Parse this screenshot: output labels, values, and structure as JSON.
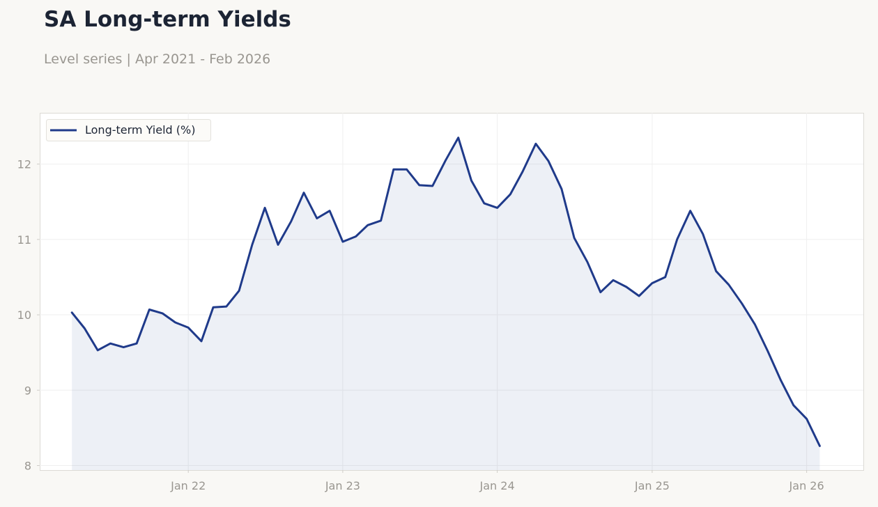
{
  "header": {
    "title": "SA Long-term Yields",
    "subtitle": "Level series | Apr 2021 - Feb 2026"
  },
  "colors": {
    "line": "#1f3a8a",
    "fill": "#1f3a8a",
    "background": "#f9f8f5",
    "plot_background": "#ffffff",
    "grid": "#efefef",
    "tick_text": "#999690"
  },
  "chart_data": {
    "type": "line",
    "title": "SA Long-term Yields",
    "subtitle": "Level series | Apr 2021 - Feb 2026",
    "xlabel": "",
    "ylabel": "",
    "legend_position": "top-left",
    "grid": true,
    "filled_area": true,
    "xlim": [
      "2021-01-15",
      "2026-05-15"
    ],
    "ylim": [
      7.94,
      12.68
    ],
    "x_ticks": [
      {
        "date": "2022-01-01",
        "label": "Jan 22"
      },
      {
        "date": "2023-01-01",
        "label": "Jan 23"
      },
      {
        "date": "2024-01-01",
        "label": "Jan 24"
      },
      {
        "date": "2025-01-01",
        "label": "Jan 25"
      },
      {
        "date": "2026-01-01",
        "label": "Jan 26"
      }
    ],
    "y_ticks": [
      8,
      9,
      10,
      11,
      12
    ],
    "series": [
      {
        "name": "Long-term Yield (%)",
        "x": [
          "2021-04",
          "2021-05",
          "2021-06",
          "2021-07",
          "2021-08",
          "2021-09",
          "2021-10",
          "2021-11",
          "2021-12",
          "2022-01",
          "2022-02",
          "2022-03",
          "2022-04",
          "2022-05",
          "2022-06",
          "2022-07",
          "2022-08",
          "2022-09",
          "2022-10",
          "2022-11",
          "2022-12",
          "2023-01",
          "2023-02",
          "2023-03",
          "2023-04",
          "2023-05",
          "2023-06",
          "2023-07",
          "2023-08",
          "2023-09",
          "2023-10",
          "2023-11",
          "2023-12",
          "2024-01",
          "2024-02",
          "2024-03",
          "2024-04",
          "2024-05",
          "2024-06",
          "2024-07",
          "2024-08",
          "2024-09",
          "2024-10",
          "2024-11",
          "2024-12",
          "2025-01",
          "2025-02",
          "2025-03",
          "2025-04",
          "2025-05",
          "2025-06",
          "2025-07",
          "2025-08",
          "2025-09",
          "2025-10",
          "2025-11",
          "2025-12",
          "2026-01",
          "2026-02"
        ],
        "values": [
          10.03,
          9.82,
          9.53,
          9.62,
          9.57,
          9.62,
          10.07,
          10.02,
          9.9,
          9.83,
          9.65,
          10.1,
          10.11,
          10.32,
          10.93,
          11.42,
          10.93,
          11.24,
          11.62,
          11.28,
          11.38,
          10.97,
          11.04,
          11.19,
          11.25,
          11.93,
          11.93,
          11.72,
          11.71,
          12.05,
          12.35,
          11.78,
          11.48,
          11.42,
          11.6,
          11.9,
          12.27,
          12.04,
          11.67,
          11.02,
          10.7,
          10.3,
          10.46,
          10.37,
          10.25,
          10.42,
          10.5,
          11.0,
          11.38,
          11.07,
          10.58,
          10.4,
          10.15,
          9.87,
          9.52,
          9.13,
          8.8,
          8.62,
          8.26
        ]
      }
    ]
  }
}
